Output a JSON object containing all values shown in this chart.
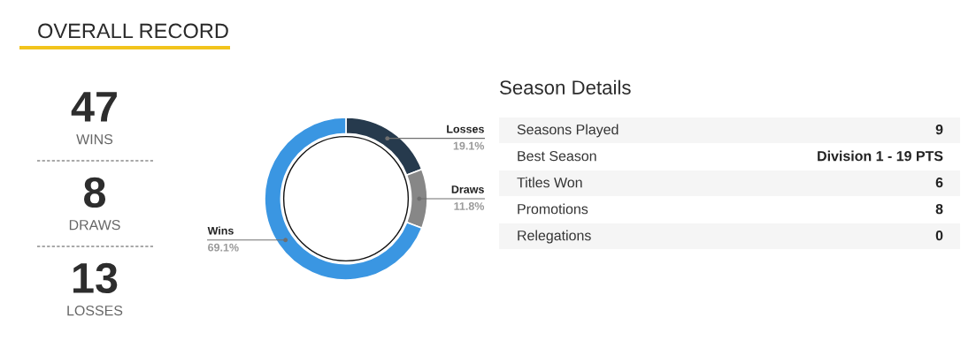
{
  "chart_data": [
    {
      "type": "other",
      "title": "OVERALL RECORD",
      "categories": [
        "WINS",
        "DRAWS",
        "LOSSES"
      ],
      "values": [
        47,
        8,
        13
      ],
      "data_labels": true
    },
    {
      "type": "donut",
      "categories": [
        "Losses",
        "Draws",
        "Wins"
      ],
      "values": [
        19.1,
        11.8,
        69.1
      ],
      "colors": [
        "#263a4d",
        "#878787",
        "#3a96e2"
      ],
      "value_labels": [
        "19.1%",
        "11.8%",
        "69.1%"
      ]
    },
    {
      "type": "other",
      "title": "Season Details",
      "categories": [
        "Seasons Played",
        "Best Season",
        "Titles Won",
        "Promotions",
        "Relegations"
      ],
      "value_labels": [
        "9",
        "Division 1 - 19 PTS",
        "6",
        "8",
        "0"
      ]
    }
  ]
}
